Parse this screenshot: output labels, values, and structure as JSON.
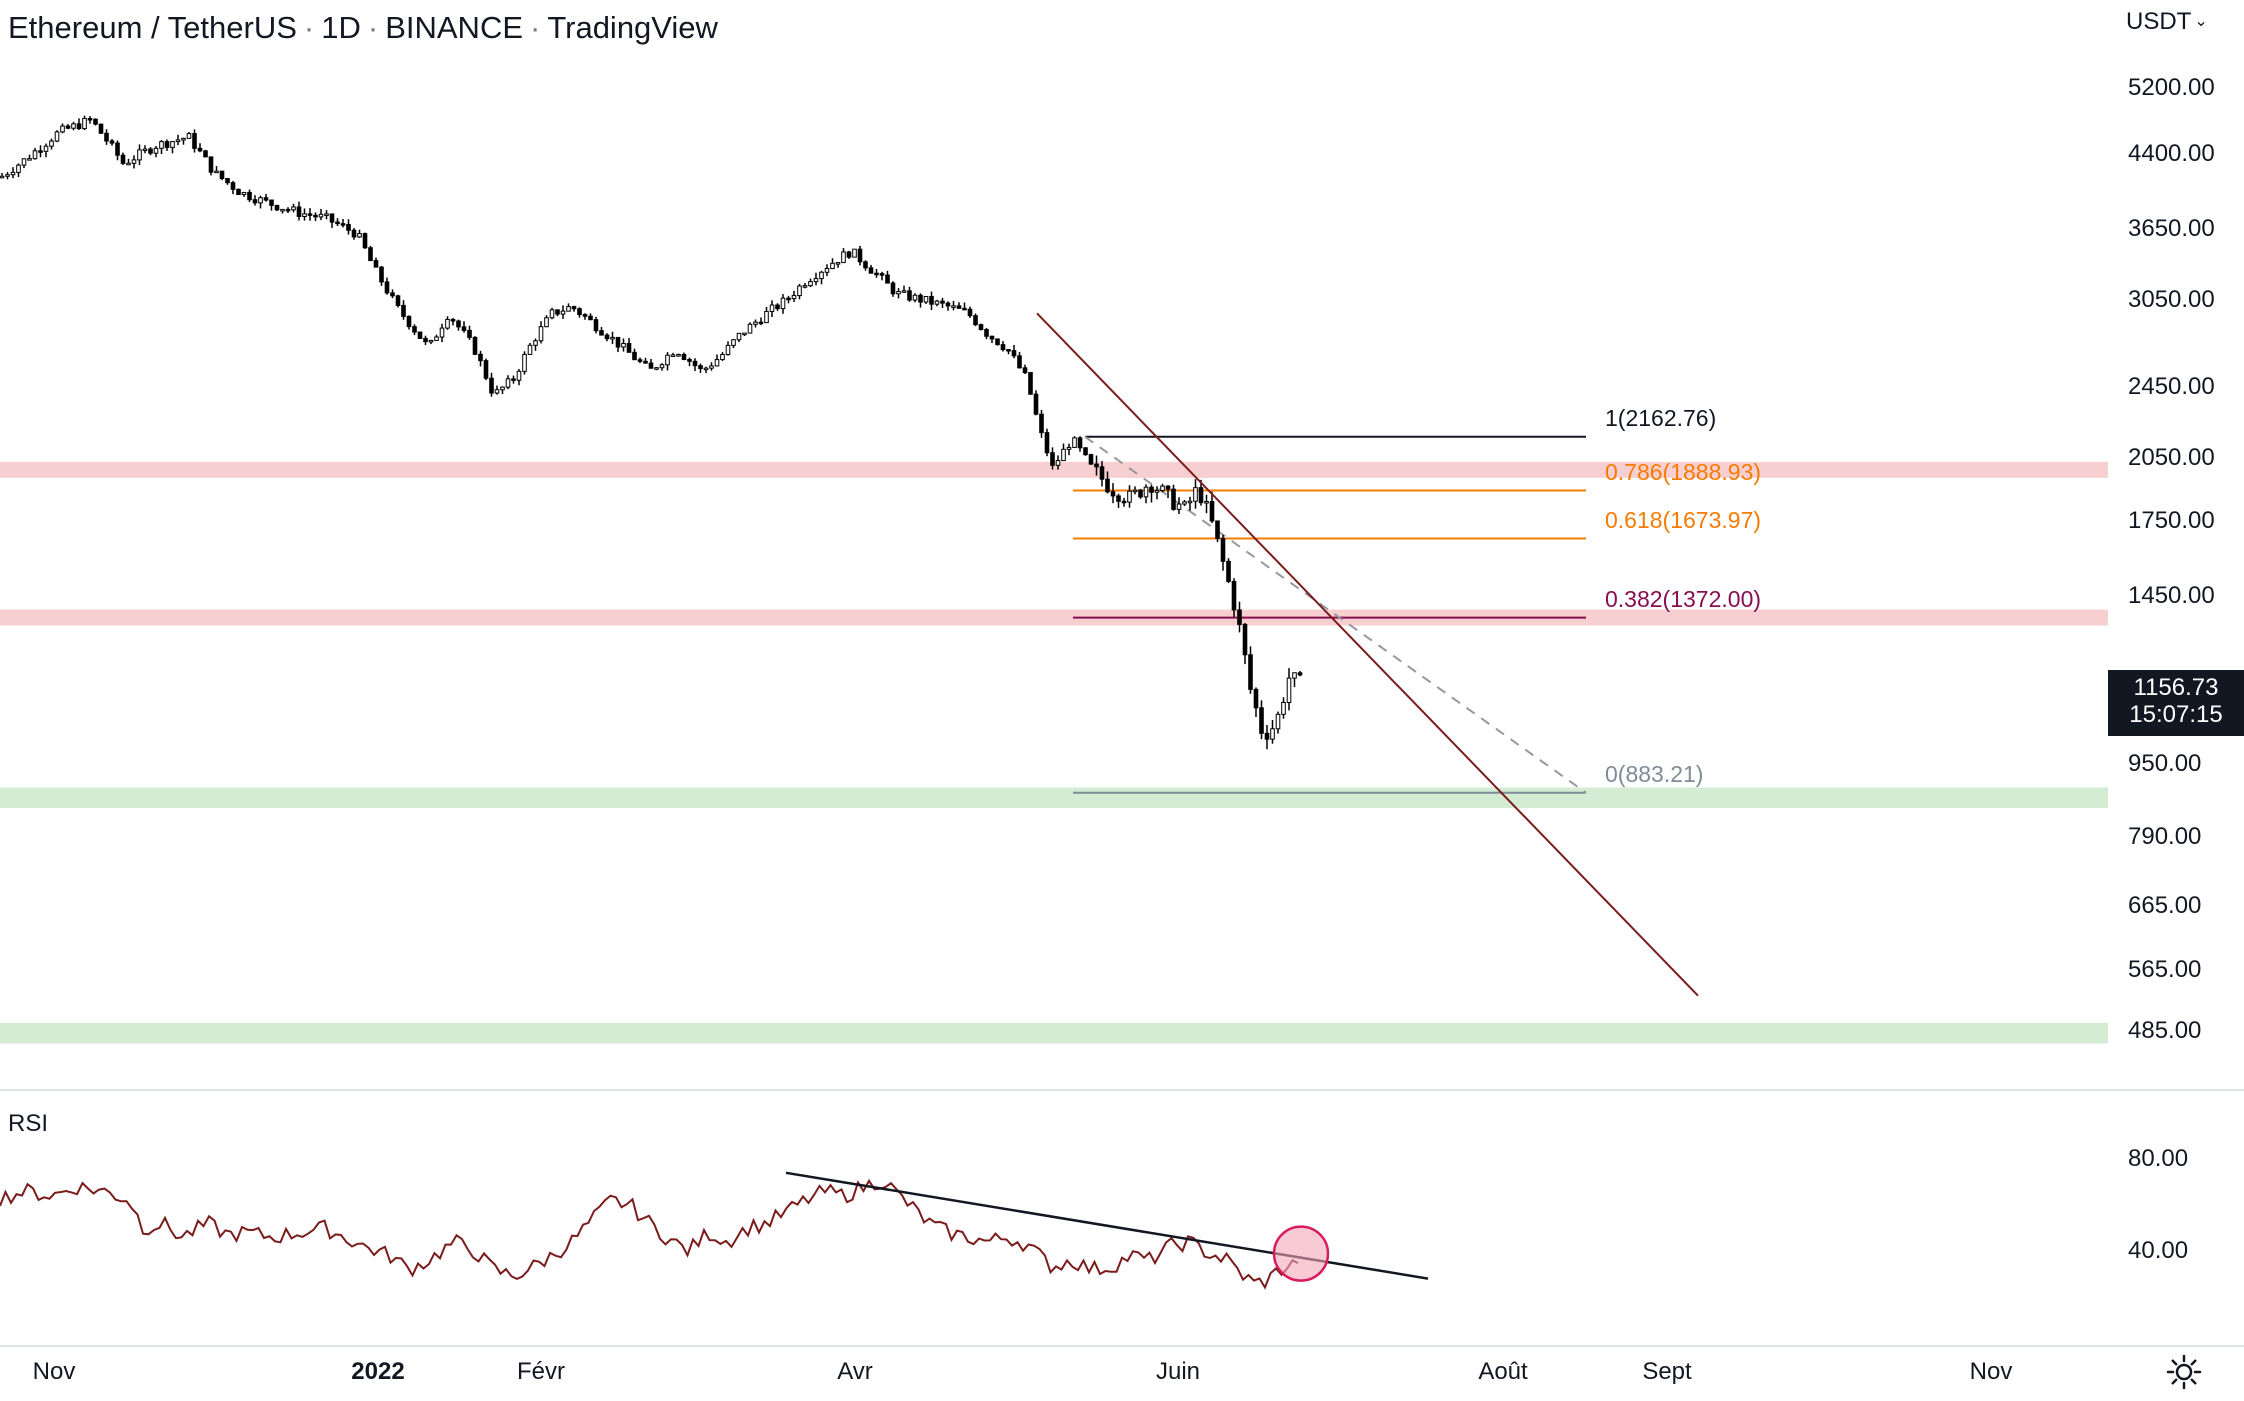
{
  "header": {
    "symbol": "Ethereum / TetherUS",
    "interval": "1D",
    "exchange": "BINANCE",
    "platform": "TradingView",
    "separator": "·"
  },
  "currency_selector": {
    "label": "USDT",
    "icon": "chevron-down-icon"
  },
  "last_price": {
    "value": "1156.73",
    "countdown": "15:07:15"
  },
  "rsi_label": "RSI",
  "settings_icon": "gear-icon",
  "colors": {
    "candle": "#000000",
    "resistance_zone": "#f8cfd0",
    "support_zone": "#d3ecd3",
    "trendline": "#7b1c1c",
    "rsi_line": "#7b1c1c",
    "fib_1": "#131722",
    "fib_0786": "#f57c00",
    "fib_0618": "#f57c00",
    "fib_0382": "#880e4f",
    "fib_0": "#7f8c98",
    "highlight_circle": "#f3a6b8"
  },
  "chart_data": [
    {
      "type": "candlestick",
      "scale": "log",
      "x_axis_labels": [
        "Nov",
        "2022",
        "Févr",
        "Avr",
        "Juin",
        "Août",
        "Sept",
        "Nov"
      ],
      "y_tick_labels": [
        "5200.00",
        "4400.00",
        "3650.00",
        "3050.00",
        "2450.00",
        "2050.00",
        "1750.00",
        "1450.00",
        "950.00",
        "790.00",
        "665.00",
        "565.00",
        "485.00"
      ],
      "y_ticks": [
        5200,
        4400,
        3650,
        3050,
        2450,
        2050,
        1750,
        1450,
        950,
        790,
        665,
        565,
        485
      ],
      "price_path": [
        [
          0,
          4150
        ],
        [
          20,
          4350
        ],
        [
          45,
          4650
        ],
        [
          70,
          4800
        ],
        [
          95,
          4300
        ],
        [
          120,
          4500
        ],
        [
          145,
          4600
        ],
        [
          165,
          4200
        ],
        [
          185,
          4000
        ],
        [
          205,
          3900
        ],
        [
          230,
          3800
        ],
        [
          250,
          3750
        ],
        [
          275,
          3600
        ],
        [
          288,
          3300
        ],
        [
          305,
          3000
        ],
        [
          330,
          2700
        ],
        [
          345,
          2950
        ],
        [
          365,
          2700
        ],
        [
          380,
          2400
        ],
        [
          395,
          2500
        ],
        [
          410,
          2750
        ],
        [
          425,
          2950
        ],
        [
          440,
          3000
        ],
        [
          460,
          2850
        ],
        [
          480,
          2700
        ],
        [
          500,
          2550
        ],
        [
          520,
          2700
        ],
        [
          540,
          2550
        ],
        [
          555,
          2650
        ],
        [
          570,
          2800
        ],
        [
          590,
          2950
        ],
        [
          605,
          3050
        ],
        [
          620,
          3200
        ],
        [
          640,
          3350
        ],
        [
          655,
          3450
        ],
        [
          670,
          3300
        ],
        [
          690,
          3100
        ],
        [
          710,
          3050
        ],
        [
          730,
          3000
        ],
        [
          745,
          2950
        ],
        [
          760,
          2800
        ],
        [
          775,
          2700
        ],
        [
          790,
          2500
        ],
        [
          800,
          2200
        ],
        [
          810,
          2000
        ],
        [
          825,
          2150
        ],
        [
          840,
          2000
        ],
        [
          855,
          1900
        ],
        [
          870,
          1850
        ],
        [
          885,
          1930
        ],
        [
          900,
          1850
        ],
        [
          912,
          1800
        ],
        [
          922,
          1900
        ],
        [
          932,
          1750
        ],
        [
          942,
          1560
        ],
        [
          952,
          1380
        ],
        [
          962,
          1150
        ],
        [
          972,
          1020
        ],
        [
          982,
          1050
        ],
        [
          992,
          1180
        ],
        [
          1002,
          1160
        ]
      ],
      "last_price": 1156.73,
      "price_zones": [
        {
          "role": "resistance",
          "from": 1950,
          "to": 2030
        },
        {
          "role": "resistance",
          "from": 1345,
          "to": 1400
        },
        {
          "role": "support",
          "from": 850,
          "to": 895
        },
        {
          "role": "support",
          "from": 470,
          "to": 495
        }
      ],
      "fibonacci": [
        {
          "level": "1",
          "label": "1(2162.76)",
          "price": 2162.76
        },
        {
          "level": "0.786",
          "label": "0.786(1888.93)",
          "price": 1888.93
        },
        {
          "level": "0.618",
          "label": "0.618(1673.97)",
          "price": 1673.97
        },
        {
          "level": "0.382",
          "label": "0.382(1372.00)",
          "price": 1372.0
        },
        {
          "level": "0",
          "label": "0(883.21)",
          "price": 883.21
        }
      ],
      "trendline": {
        "from_price": 2950,
        "to_price": 530
      }
    },
    {
      "type": "line",
      "indicator": "RSI",
      "y_tick_labels": [
        "80.00",
        "40.00"
      ],
      "y_ticks": [
        80,
        40
      ],
      "rsi_path": [
        [
          0,
          63
        ],
        [
          20,
          66
        ],
        [
          40,
          64
        ],
        [
          60,
          68
        ],
        [
          80,
          66
        ],
        [
          100,
          62
        ],
        [
          110,
          50
        ],
        [
          125,
          52
        ],
        [
          140,
          46
        ],
        [
          160,
          52
        ],
        [
          175,
          47
        ],
        [
          190,
          48
        ],
        [
          210,
          46
        ],
        [
          230,
          48
        ],
        [
          250,
          50
        ],
        [
          265,
          46
        ],
        [
          280,
          42
        ],
        [
          300,
          38
        ],
        [
          315,
          32
        ],
        [
          330,
          36
        ],
        [
          350,
          44
        ],
        [
          365,
          40
        ],
        [
          380,
          32
        ],
        [
          395,
          29
        ],
        [
          410,
          33
        ],
        [
          425,
          38
        ],
        [
          440,
          44
        ],
        [
          455,
          53
        ],
        [
          470,
          62
        ],
        [
          485,
          60
        ],
        [
          500,
          52
        ],
        [
          515,
          45
        ],
        [
          530,
          40
        ],
        [
          545,
          48
        ],
        [
          560,
          44
        ],
        [
          575,
          50
        ],
        [
          590,
          52
        ],
        [
          605,
          57
        ],
        [
          620,
          62
        ],
        [
          635,
          66
        ],
        [
          650,
          64
        ],
        [
          665,
          68
        ],
        [
          680,
          71
        ],
        [
          690,
          65
        ],
        [
          700,
          60
        ],
        [
          715,
          52
        ],
        [
          730,
          48
        ],
        [
          745,
          46
        ],
        [
          760,
          44
        ],
        [
          775,
          46
        ],
        [
          790,
          43
        ],
        [
          800,
          38
        ],
        [
          810,
          33
        ],
        [
          825,
          36
        ],
        [
          840,
          32
        ],
        [
          855,
          33
        ],
        [
          870,
          38
        ],
        [
          885,
          36
        ],
        [
          900,
          42
        ],
        [
          915,
          44
        ],
        [
          930,
          39
        ],
        [
          945,
          36
        ],
        [
          955,
          30
        ],
        [
          965,
          26
        ],
        [
          975,
          27
        ],
        [
          985,
          32
        ],
        [
          995,
          34
        ],
        [
          1002,
          38
        ]
      ],
      "trendline": {
        "from_value": 74,
        "to_value": 28
      }
    }
  ]
}
